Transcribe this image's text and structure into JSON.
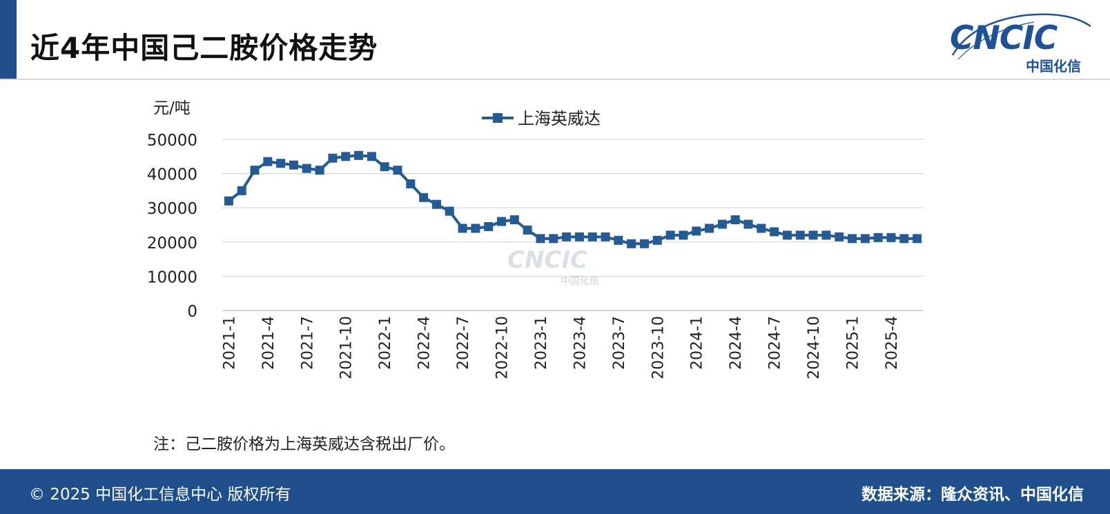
{
  "header": {
    "title": "近4年中国己二胺价格走势",
    "logo_text": "CNCIC",
    "logo_sub": "中国化信"
  },
  "watermark": {
    "text": "CNCIC",
    "sub": "中国化信"
  },
  "note": "注：己二胺价格为上海英威达含税出厂价。",
  "footer": {
    "copyright": "© 2025 中国化工信息中心  版权所有",
    "source": "数据来源：隆众资讯、中国化信"
  },
  "colors": {
    "brand": "#1e4f8c",
    "series": "#245b94",
    "grid": "#d9d9d9"
  },
  "chart_data": {
    "type": "line",
    "title": "",
    "ylabel": "元/吨",
    "xlabel": "",
    "ylim": [
      0,
      50000
    ],
    "yticks": [
      0,
      10000,
      20000,
      30000,
      40000,
      50000
    ],
    "grid": true,
    "legend_position": "top-center",
    "x_tick_labels": [
      "2021-1",
      "2021-4",
      "2021-7",
      "2021-10",
      "2022-1",
      "2022-4",
      "2022-7",
      "2022-10",
      "2023-1",
      "2023-4",
      "2023-7",
      "2023-10",
      "2024-1",
      "2024-4",
      "2024-7",
      "2024-10",
      "2025-1",
      "2025-4"
    ],
    "categories": [
      "2021-1",
      "2021-2",
      "2021-3",
      "2021-4",
      "2021-5",
      "2021-6",
      "2021-7",
      "2021-8",
      "2021-9",
      "2021-10",
      "2021-11",
      "2021-12",
      "2022-1",
      "2022-2",
      "2022-3",
      "2022-4",
      "2022-5",
      "2022-6",
      "2022-7",
      "2022-8",
      "2022-9",
      "2022-10",
      "2022-11",
      "2022-12",
      "2023-1",
      "2023-2",
      "2023-3",
      "2023-4",
      "2023-5",
      "2023-6",
      "2023-7",
      "2023-8",
      "2023-9",
      "2023-10",
      "2023-11",
      "2023-12",
      "2024-1",
      "2024-2",
      "2024-3",
      "2024-4",
      "2024-5",
      "2024-6",
      "2024-7",
      "2024-8",
      "2024-9",
      "2024-10",
      "2024-11",
      "2024-12",
      "2025-1",
      "2025-2",
      "2025-3",
      "2025-4",
      "2025-5",
      "2025-6"
    ],
    "series": [
      {
        "name": "上海英威达",
        "values": [
          32000,
          35000,
          41000,
          43500,
          43000,
          42500,
          41500,
          41000,
          44500,
          45000,
          45300,
          45000,
          42000,
          41000,
          37000,
          33000,
          31000,
          29000,
          24000,
          24000,
          24500,
          26000,
          26500,
          23500,
          21000,
          21000,
          21500,
          21500,
          21500,
          21500,
          20500,
          19500,
          19500,
          20500,
          22000,
          22000,
          23200,
          24000,
          25200,
          26500,
          25200,
          24000,
          23000,
          22000,
          22000,
          22000,
          22000,
          21500,
          21000,
          21000,
          21300,
          21300,
          21000,
          21000
        ]
      }
    ]
  }
}
